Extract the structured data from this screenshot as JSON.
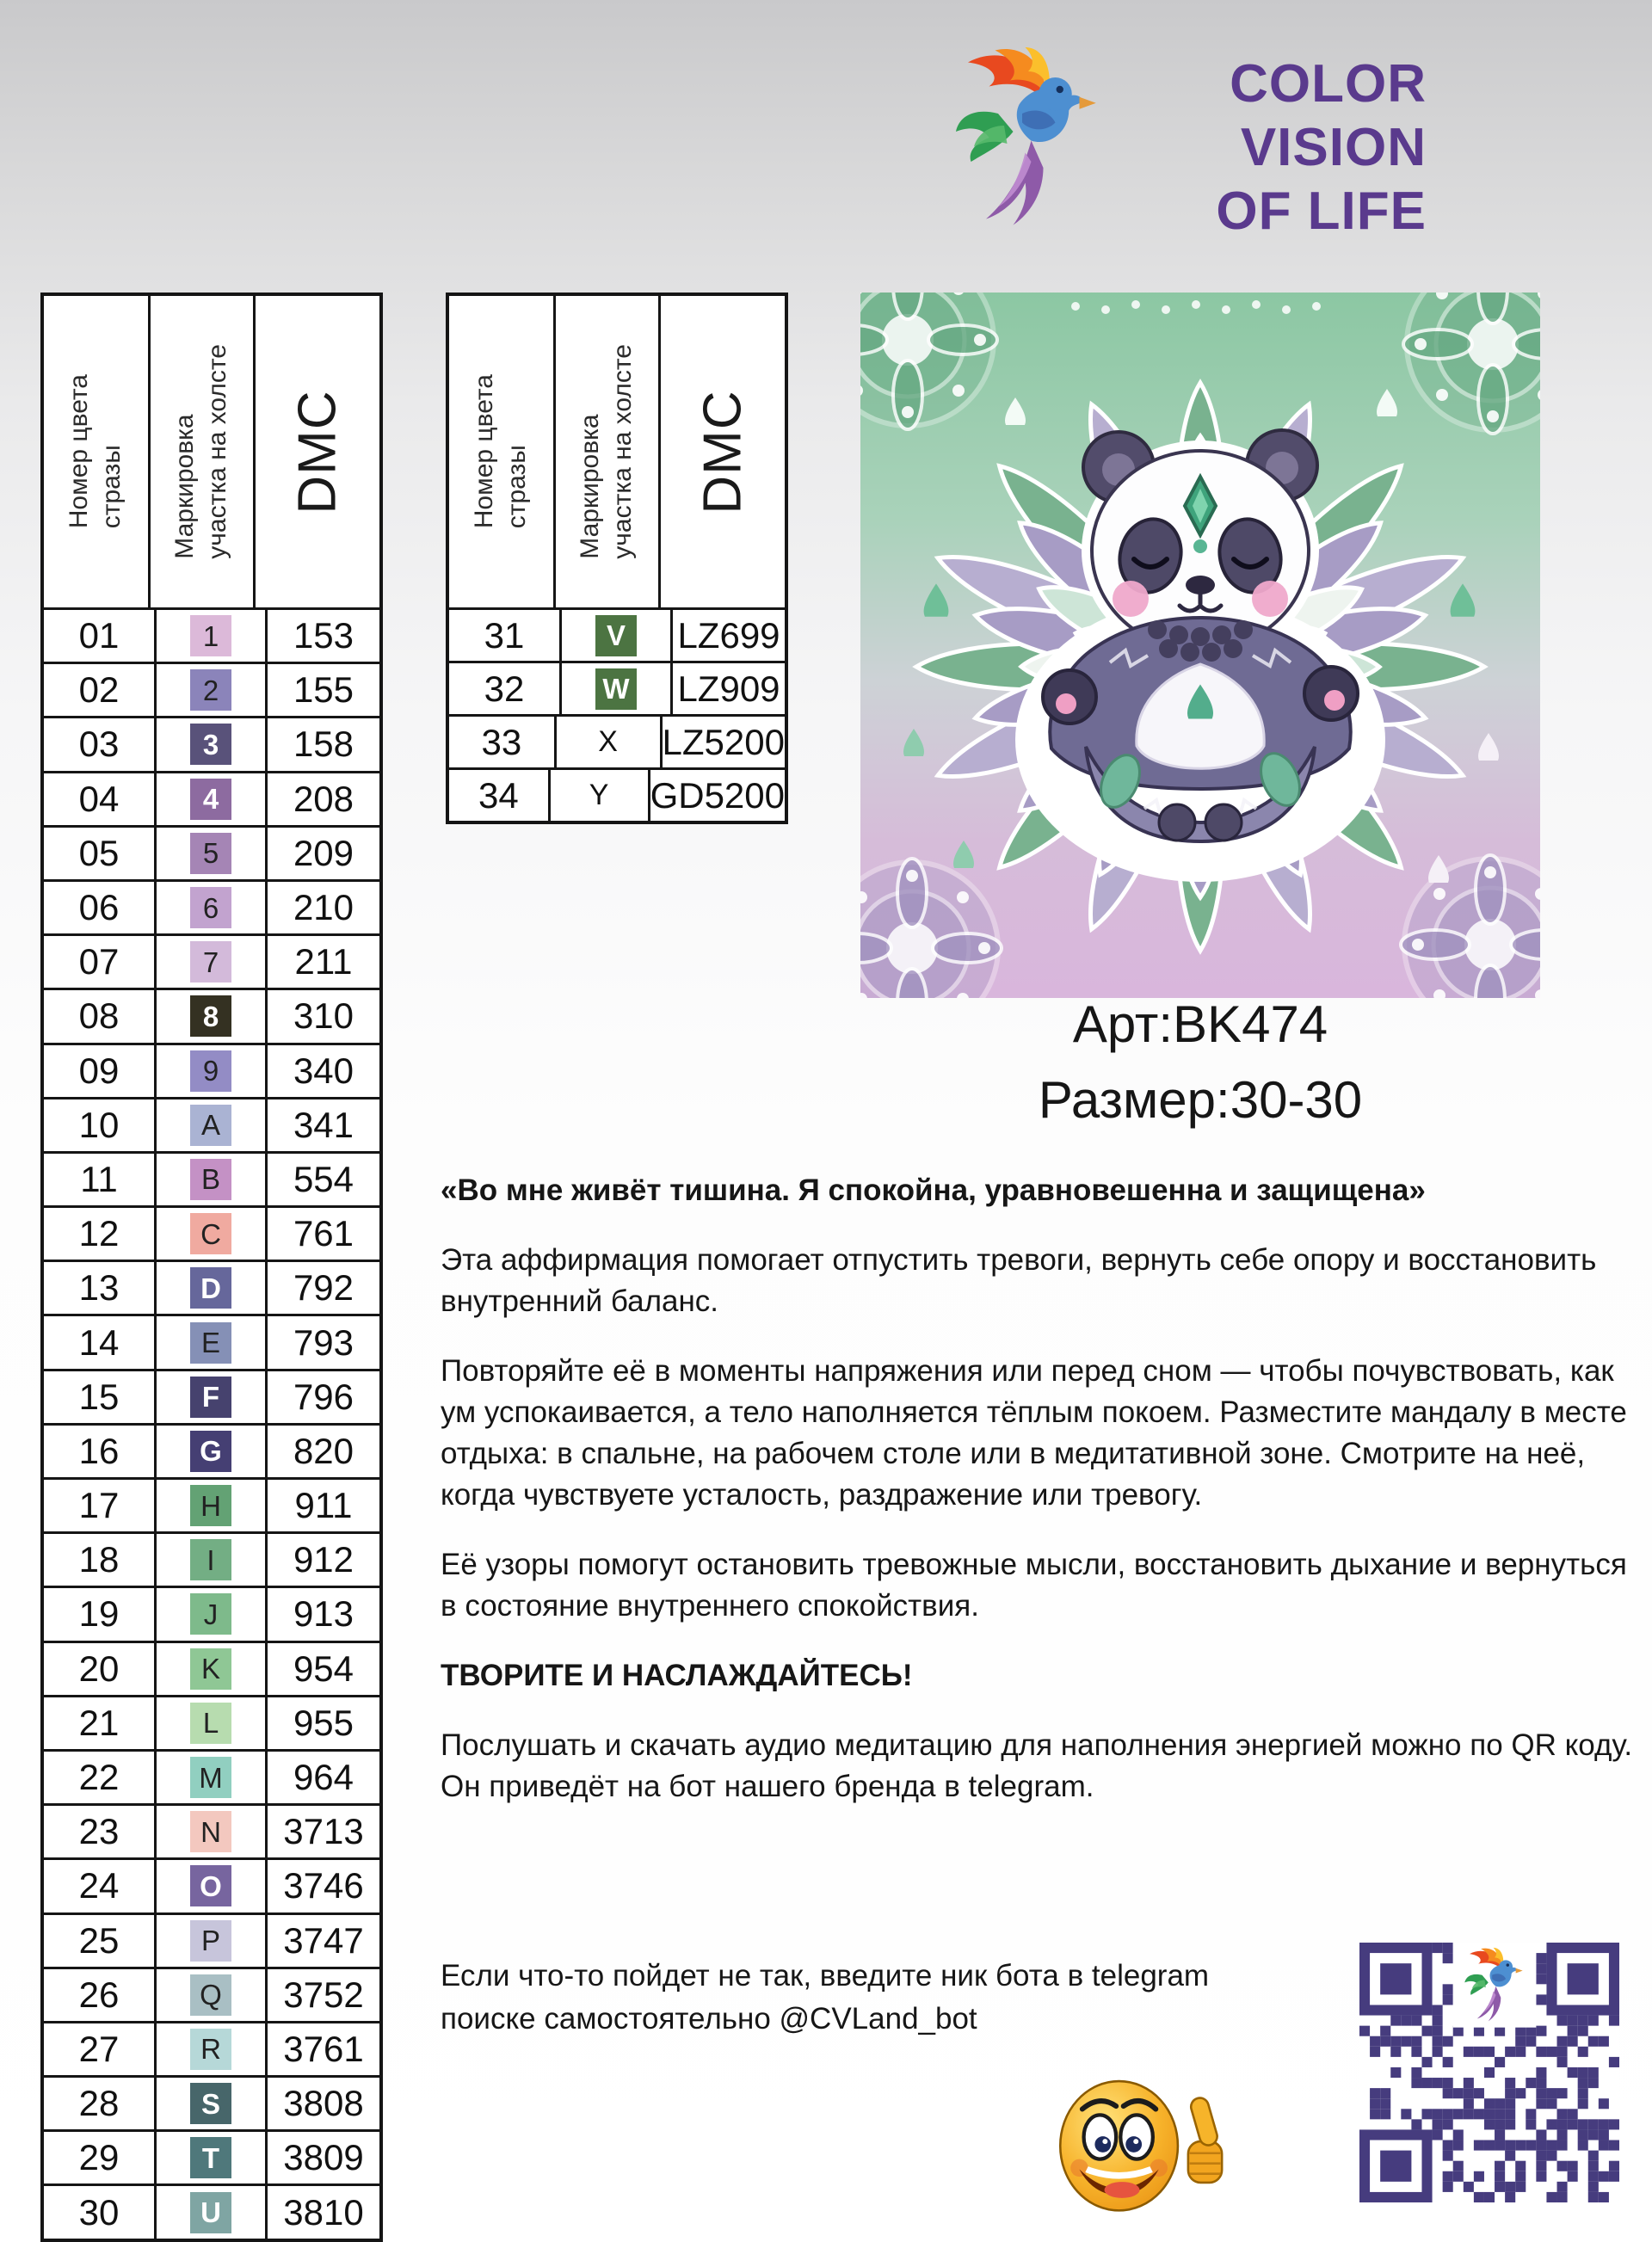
{
  "brand": {
    "name_lines": [
      "COLOR",
      "VISION",
      "OF LIFE"
    ],
    "text_color": "#5a3a8d",
    "icon": "hummingbird-logo"
  },
  "tables": {
    "headers": {
      "col1": "Номер цвета\nстразы",
      "col2": "Маркировка\nучастка на холсте",
      "col3": "DMC"
    },
    "left_rows": [
      {
        "num": "01",
        "mark": "1",
        "dmc": "153",
        "swatch": "#dcb9d9",
        "mark_color": "#222222"
      },
      {
        "num": "02",
        "mark": "2",
        "dmc": "155",
        "swatch": "#8b84ba",
        "mark_color": "#222222"
      },
      {
        "num": "03",
        "mark": "3",
        "dmc": "158",
        "swatch": "#59527a",
        "mark_color": "#ffffff"
      },
      {
        "num": "04",
        "mark": "4",
        "dmc": "208",
        "swatch": "#8d6ba0",
        "mark_color": "#ffffff"
      },
      {
        "num": "05",
        "mark": "5",
        "dmc": "209",
        "swatch": "#a585b5",
        "mark_color": "#222222"
      },
      {
        "num": "06",
        "mark": "6",
        "dmc": "210",
        "swatch": "#c2a3cf",
        "mark_color": "#222222"
      },
      {
        "num": "07",
        "mark": "7",
        "dmc": "211",
        "swatch": "#d3bada",
        "mark_color": "#222222"
      },
      {
        "num": "08",
        "mark": "8",
        "dmc": "310",
        "swatch": "#343122",
        "mark_color": "#ffffff"
      },
      {
        "num": "09",
        "mark": "9",
        "dmc": "340",
        "swatch": "#938cc5",
        "mark_color": "#222222"
      },
      {
        "num": "10",
        "mark": "A",
        "dmc": "341",
        "swatch": "#aab3d3",
        "mark_color": "#222222"
      },
      {
        "num": "11",
        "mark": "B",
        "dmc": "554",
        "swatch": "#c491c5",
        "mark_color": "#222222"
      },
      {
        "num": "12",
        "mark": "C",
        "dmc": "761",
        "swatch": "#f0aaa0",
        "mark_color": "#222222"
      },
      {
        "num": "13",
        "mark": "D",
        "dmc": "792",
        "swatch": "#66679b",
        "mark_color": "#ffffff"
      },
      {
        "num": "14",
        "mark": "E",
        "dmc": "793",
        "swatch": "#8590b6",
        "mark_color": "#222222"
      },
      {
        "num": "15",
        "mark": "F",
        "dmc": "796",
        "swatch": "#46426e",
        "mark_color": "#ffffff"
      },
      {
        "num": "16",
        "mark": "G",
        "dmc": "820",
        "swatch": "#453f73",
        "mark_color": "#ffffff"
      },
      {
        "num": "17",
        "mark": "H",
        "dmc": "911",
        "swatch": "#63a274",
        "mark_color": "#222222"
      },
      {
        "num": "18",
        "mark": "I",
        "dmc": "912",
        "swatch": "#73ae84",
        "mark_color": "#222222"
      },
      {
        "num": "19",
        "mark": "J",
        "dmc": "913",
        "swatch": "#7eba8b",
        "mark_color": "#222222"
      },
      {
        "num": "20",
        "mark": "K",
        "dmc": "954",
        "swatch": "#8fc795",
        "mark_color": "#222222"
      },
      {
        "num": "21",
        "mark": "L",
        "dmc": "955",
        "swatch": "#b7dcaf",
        "mark_color": "#222222"
      },
      {
        "num": "22",
        "mark": "M",
        "dmc": "964",
        "swatch": "#91cfc0",
        "mark_color": "#222222"
      },
      {
        "num": "23",
        "mark": "N",
        "dmc": "3713",
        "swatch": "#f3c8bf",
        "mark_color": "#222222"
      },
      {
        "num": "24",
        "mark": "O",
        "dmc": "3746",
        "swatch": "#77659f",
        "mark_color": "#ffffff"
      },
      {
        "num": "25",
        "mark": "P",
        "dmc": "3747",
        "swatch": "#c7c5db",
        "mark_color": "#222222"
      },
      {
        "num": "26",
        "mark": "Q",
        "dmc": "3752",
        "swatch": "#a9bfc4",
        "mark_color": "#222222"
      },
      {
        "num": "27",
        "mark": "R",
        "dmc": "3761",
        "swatch": "#b6d8d8",
        "mark_color": "#222222"
      },
      {
        "num": "28",
        "mark": "S",
        "dmc": "3808",
        "swatch": "#47666a",
        "mark_color": "#ffffff"
      },
      {
        "num": "29",
        "mark": "T",
        "dmc": "3809",
        "swatch": "#4f787b",
        "mark_color": "#ffffff"
      },
      {
        "num": "30",
        "mark": "U",
        "dmc": "3810",
        "swatch": "#7fa5a3",
        "mark_color": "#ffffff"
      }
    ],
    "right_rows": [
      {
        "num": "31",
        "mark": "V",
        "dmc": "LZ699",
        "swatch": "#4c7442",
        "mark_color": "#ffffff"
      },
      {
        "num": "32",
        "mark": "W",
        "dmc": "LZ909",
        "swatch": "#4c7442",
        "mark_color": "#ffffff"
      },
      {
        "num": "33",
        "mark": "X",
        "dmc": "LZ5200",
        "swatch": null,
        "mark_color": "#222222"
      },
      {
        "num": "34",
        "mark": "Y",
        "dmc": "GD5200",
        "swatch": null,
        "mark_color": "#222222"
      }
    ]
  },
  "artwork": {
    "article": "Арт:BK474",
    "size": "Размер:30-30",
    "image": "meditating-panda-mandala"
  },
  "body_text": {
    "paragraphs": [
      {
        "text": "«Во мне живёт тишина. Я спокойна, уравновешенна и защищена»",
        "bold": true
      },
      {
        "text": "Эта аффирмация помогает отпустить тревоги, вернуть себе опору и восстановить внутренний баланс.",
        "bold": false
      },
      {
        "text": "Повторяйте её в моменты напряжения или перед сном — чтобы почувствовать, как ум успокаивается, а тело наполняется тёплым покоем. Разместите мандалу в месте отдыха: в спальне, на рабочем столе или в медитативной зоне. Смотрите на неё, когда чувствуете усталость, раздражение или тревогу.",
        "bold": false
      },
      {
        "text": "Её узоры помогут остановить тревожные мысли, восстановить дыхание и вернуться в состояние внутреннего спокойствия.",
        "bold": false
      },
      {
        "text": "ТВОРИТЕ И НАСЛАЖДАЙТЕСЬ!",
        "bold": true
      },
      {
        "text": "Послушать и скачать аудио медитацию для наполнения энергией можно по QR коду. Он приведёт на бот нашего бренда в telegram.",
        "bold": false
      }
    ]
  },
  "footer": {
    "note": "Если что-то пойдет не так, введите ник бота в telegram поиске самостоятельно @CVLand_bot",
    "qr": "telegram-bot-qr-code",
    "emoji": "thumbs-up-smiley",
    "qr_color": "#463c7e"
  }
}
